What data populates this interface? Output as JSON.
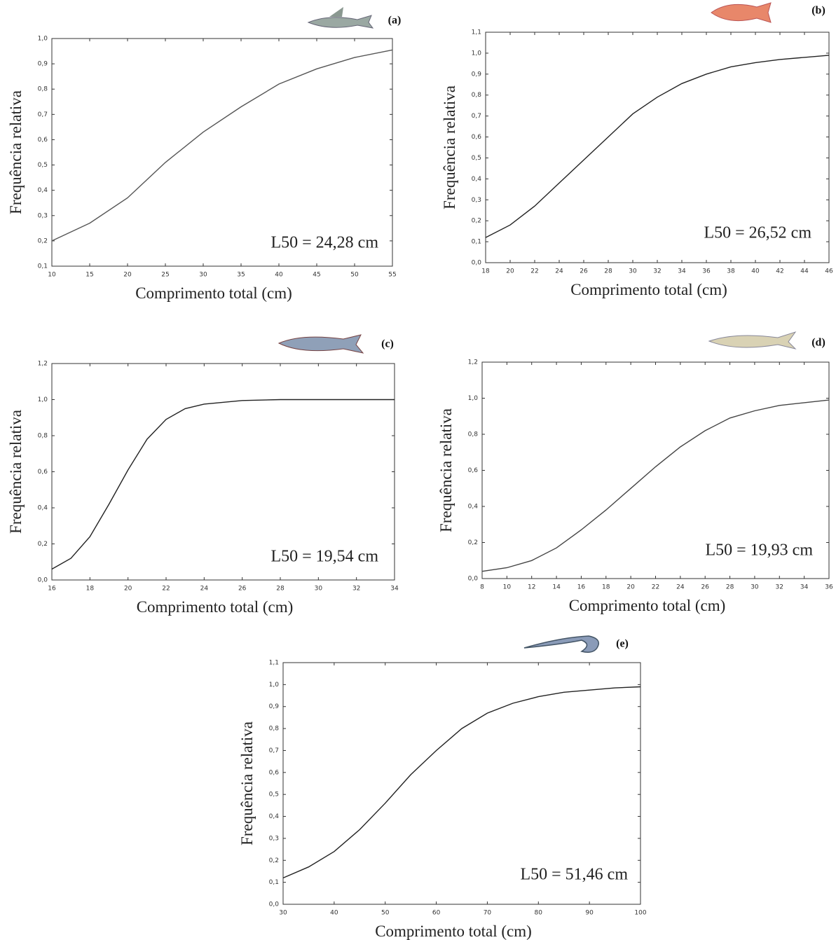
{
  "chart_data": [
    {
      "type": "line",
      "title": "(a)",
      "xlabel": "Comprimento total (cm)",
      "ylabel": "Frequência relativa",
      "annotation": "L50 = 24,28 cm",
      "color": "#555",
      "x": [
        10,
        15,
        20,
        25,
        30,
        35,
        40,
        45,
        50,
        55
      ],
      "values": [
        0.2,
        0.27,
        0.37,
        0.51,
        0.63,
        0.73,
        0.82,
        0.88,
        0.925,
        0.955
      ],
      "xlim": [
        10,
        55
      ],
      "xticks": [
        10,
        15,
        20,
        25,
        30,
        35,
        40,
        45,
        50,
        55
      ],
      "ylim": [
        0.1,
        1.0
      ],
      "yticks": [
        {
          "value": 0.1,
          "label": "0,1"
        },
        {
          "value": 0.2,
          "label": "0,2"
        },
        {
          "value": 0.3,
          "label": "0,3"
        },
        {
          "value": 0.4,
          "label": "0,4"
        },
        {
          "value": 0.5,
          "label": "0,5"
        },
        {
          "value": 0.6,
          "label": "0,6"
        },
        {
          "value": 0.7,
          "label": "0,7"
        },
        {
          "value": 0.8,
          "label": "0,8"
        },
        {
          "value": 0.9,
          "label": "0,9"
        },
        {
          "value": 1.0,
          "label": "1,0"
        }
      ]
    },
    {
      "type": "line",
      "title": "(b)",
      "xlabel": "Comprimento total (cm)",
      "ylabel": "Frequência relativa",
      "annotation": "L50 = 26,52 cm",
      "color": "#222",
      "x": [
        18,
        20,
        22,
        24,
        26,
        28,
        30,
        32,
        34,
        36,
        38,
        40,
        42,
        44,
        46
      ],
      "values": [
        0.12,
        0.18,
        0.27,
        0.38,
        0.49,
        0.6,
        0.71,
        0.79,
        0.855,
        0.9,
        0.935,
        0.955,
        0.97,
        0.98,
        0.99
      ],
      "xlim": [
        18,
        46
      ],
      "xticks": [
        18,
        20,
        22,
        24,
        26,
        28,
        30,
        32,
        34,
        36,
        38,
        40,
        42,
        44,
        46
      ],
      "ylim": [
        0.0,
        1.1
      ],
      "yticks": [
        {
          "value": 0.0,
          "label": "0,0"
        },
        {
          "value": 0.1,
          "label": "0,1"
        },
        {
          "value": 0.2,
          "label": "0,2"
        },
        {
          "value": 0.3,
          "label": "0,3"
        },
        {
          "value": 0.4,
          "label": "0,4"
        },
        {
          "value": 0.5,
          "label": "0,5"
        },
        {
          "value": 0.6,
          "label": "0,6"
        },
        {
          "value": 0.7,
          "label": "0,7"
        },
        {
          "value": 0.8,
          "label": "0,8"
        },
        {
          "value": 0.9,
          "label": "0,9"
        },
        {
          "value": 1.0,
          "label": "1,0"
        },
        {
          "value": 1.1,
          "label": "1,1"
        }
      ]
    },
    {
      "type": "line",
      "title": "(c)",
      "xlabel": "Comprimento total (cm)",
      "ylabel": "Frequência relativa",
      "annotation": "L50 = 19,54 cm",
      "color": "#222",
      "x": [
        16,
        17,
        18,
        19,
        20,
        21,
        22,
        23,
        24,
        26,
        28,
        30,
        32,
        34
      ],
      "values": [
        0.06,
        0.12,
        0.24,
        0.42,
        0.61,
        0.78,
        0.89,
        0.95,
        0.975,
        0.995,
        1.0,
        1.0,
        1.0,
        1.0
      ],
      "xlim": [
        16,
        34
      ],
      "xticks": [
        16,
        18,
        20,
        22,
        24,
        26,
        28,
        30,
        32,
        34
      ],
      "ylim": [
        0.0,
        1.2
      ],
      "yticks": [
        {
          "value": 0.0,
          "label": "0,0"
        },
        {
          "value": 0.2,
          "label": "0,2"
        },
        {
          "value": 0.4,
          "label": "0,4"
        },
        {
          "value": 0.6,
          "label": "0,6"
        },
        {
          "value": 0.8,
          "label": "0,8"
        },
        {
          "value": 1.0,
          "label": "1,0"
        },
        {
          "value": 1.2,
          "label": "1,2"
        }
      ]
    },
    {
      "type": "line",
      "title": "(d)",
      "xlabel": "Comprimento total (cm)",
      "ylabel": "Frequência relativa",
      "annotation": "L50 = 19,93 cm",
      "color": "#444",
      "x": [
        8,
        10,
        12,
        14,
        16,
        18,
        20,
        22,
        24,
        26,
        28,
        30,
        32,
        34,
        36
      ],
      "values": [
        0.04,
        0.06,
        0.1,
        0.17,
        0.27,
        0.38,
        0.5,
        0.62,
        0.73,
        0.82,
        0.89,
        0.93,
        0.96,
        0.975,
        0.99
      ],
      "xlim": [
        8,
        36
      ],
      "xticks": [
        8,
        10,
        12,
        14,
        16,
        18,
        20,
        22,
        24,
        26,
        28,
        30,
        32,
        34,
        36
      ],
      "ylim": [
        0.0,
        1.2
      ],
      "yticks": [
        {
          "value": 0.0,
          "label": "0,0"
        },
        {
          "value": 0.2,
          "label": "0,2"
        },
        {
          "value": 0.4,
          "label": "0,4"
        },
        {
          "value": 0.6,
          "label": "0,6"
        },
        {
          "value": 0.8,
          "label": "0,8"
        },
        {
          "value": 1.0,
          "label": "1,0"
        },
        {
          "value": 1.2,
          "label": "1,2"
        }
      ]
    },
    {
      "type": "line",
      "title": "(e)",
      "xlabel": "Comprimento total (cm)",
      "ylabel": "Frequência relativa",
      "annotation": "L50 = 51,46 cm",
      "color": "#222",
      "x": [
        30,
        35,
        40,
        45,
        50,
        55,
        60,
        65,
        70,
        75,
        80,
        85,
        90,
        95,
        100
      ],
      "values": [
        0.12,
        0.17,
        0.24,
        0.34,
        0.46,
        0.59,
        0.7,
        0.8,
        0.87,
        0.915,
        0.945,
        0.965,
        0.975,
        0.985,
        0.99
      ],
      "xlim": [
        30,
        100
      ],
      "xticks": [
        30,
        40,
        50,
        60,
        70,
        80,
        90,
        100
      ],
      "ylim": [
        0.0,
        1.1
      ],
      "yticks": [
        {
          "value": 0.0,
          "label": "0,0"
        },
        {
          "value": 0.1,
          "label": "0,1"
        },
        {
          "value": 0.2,
          "label": "0,2"
        },
        {
          "value": 0.3,
          "label": "0,3"
        },
        {
          "value": 0.4,
          "label": "0,4"
        },
        {
          "value": 0.5,
          "label": "0,5"
        },
        {
          "value": 0.6,
          "label": "0,6"
        },
        {
          "value": 0.7,
          "label": "0,7"
        },
        {
          "value": 0.8,
          "label": "0,8"
        },
        {
          "value": 0.9,
          "label": "0,9"
        },
        {
          "value": 1.0,
          "label": "1,0"
        },
        {
          "value": 1.1,
          "label": "1,1"
        }
      ]
    }
  ]
}
